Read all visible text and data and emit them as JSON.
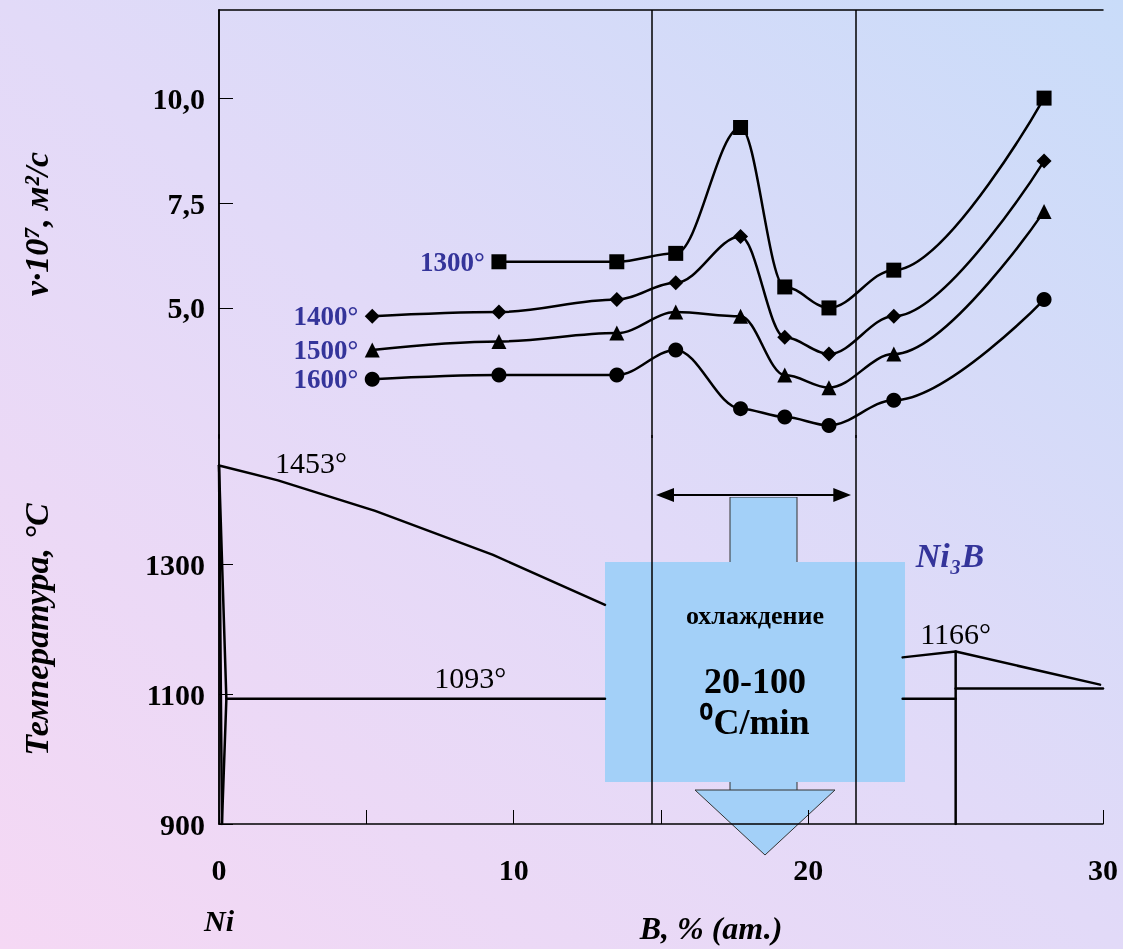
{
  "chart_data": [
    {
      "type": "line",
      "ylabel": "v·10⁷, м²/с",
      "x": [
        5.2,
        9.5,
        13.5,
        15.5,
        17.7,
        19.2,
        20.7,
        22.9,
        28.0
      ],
      "series": [
        {
          "name": "1300°",
          "color": "#000000",
          "marker": "square",
          "values": [
            null,
            6.1,
            6.1,
            6.3,
            9.3,
            5.5,
            5.0,
            5.9,
            10.0
          ]
        },
        {
          "name": "1400°",
          "color": "#000000",
          "marker": "diamond",
          "values": [
            4.8,
            4.9,
            5.2,
            5.6,
            6.7,
            4.3,
            3.9,
            4.8,
            8.5
          ]
        },
        {
          "name": "1500°",
          "color": "#000000",
          "marker": "triangle",
          "values": [
            4.0,
            4.2,
            4.4,
            4.9,
            4.8,
            3.4,
            3.1,
            3.9,
            7.3
          ]
        },
        {
          "name": "1600°",
          "color": "#000000",
          "marker": "circle",
          "values": [
            3.3,
            3.4,
            3.4,
            4.0,
            2.6,
            2.4,
            2.2,
            2.8,
            5.2
          ]
        }
      ],
      "xlim": [
        0,
        30
      ],
      "ylim": [
        1.9,
        12.1
      ],
      "yticks": [
        {
          "value": 5,
          "label": "5,0"
        },
        {
          "value": 7.5,
          "label": "7,5"
        },
        {
          "value": 10,
          "label": "10,0"
        }
      ],
      "tick_labels": "y",
      "line_style": "solid",
      "ref_lines": [
        {
          "axis": "x",
          "value": 14.7
        },
        {
          "axis": "x",
          "value": 21.6
        }
      ]
    },
    {
      "type": "line",
      "xlabel": "B, % (ат.)",
      "ylabel": "Температура, °C",
      "marker": "none",
      "line_style": "solid",
      "series": [
        {
          "color": "#000000",
          "x": [
            0,
            2,
            5.3,
            9.3,
            13.1
          ],
          "values": [
            1453,
            1430,
            1383,
            1315,
            1238
          ]
        },
        {
          "color": "#000000",
          "x": [
            0,
            0.25,
            0.1
          ],
          "values": [
            1453,
            1093,
            900
          ]
        },
        {
          "color": "#000000",
          "x": [
            0,
            0.1
          ],
          "values": [
            1453,
            900
          ]
        },
        {
          "color": "#000000",
          "x": [
            0.25,
            13.1
          ],
          "values": [
            1093,
            1093
          ]
        },
        {
          "color": "#000000",
          "x": [
            23.2,
            25
          ],
          "values": [
            1093,
            1093
          ]
        },
        {
          "color": "#000000",
          "x": [
            23.2,
            25,
            29.9
          ],
          "values": [
            1157,
            1166,
            1115
          ]
        },
        {
          "color": "#000000",
          "x": [
            25,
            25
          ],
          "values": [
            1166,
            900
          ]
        },
        {
          "color": "#000000",
          "x": [
            25,
            30
          ],
          "values": [
            1109,
            1109
          ]
        }
      ],
      "xlim": [
        0,
        30
      ],
      "xticks": [
        0,
        {
          "value": 5,
          "label": null
        },
        10,
        {
          "value": 15,
          "label": null
        },
        20,
        {
          "value": 25,
          "label": null
        },
        30
      ],
      "ylim": [
        900,
        1500
      ],
      "yticks": [
        900,
        1100,
        1300
      ],
      "ref_lines": [
        {
          "axis": "x",
          "value": 14.7
        },
        {
          "axis": "x",
          "value": 21.6
        }
      ],
      "annotations": [
        {
          "text": "1453°",
          "x": 0,
          "y": 1453
        },
        {
          "text": "1093°",
          "x": 7,
          "y": 1093
        },
        {
          "text": "1166°",
          "x": 25,
          "y": 1166
        },
        "Ni₃B",
        {
          "text": "Ni",
          "x": 0,
          "y": 900
        },
        "охлаждение",
        "20-100",
        "⁰C/min"
      ]
    }
  ]
}
